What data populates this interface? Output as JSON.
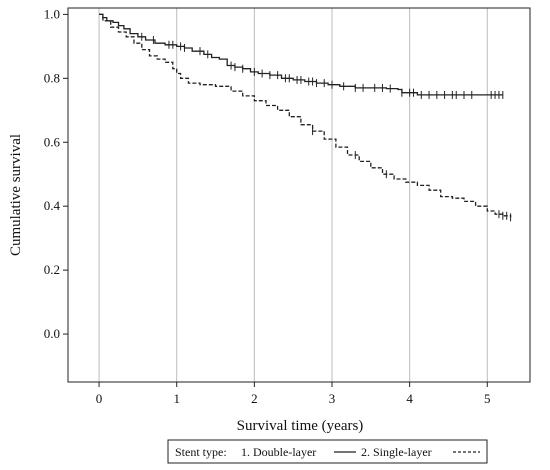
{
  "chart_data": {
    "type": "line",
    "title": "",
    "xlabel": "Survival time (years)",
    "ylabel": "Cumulative survival",
    "xlim": [
      -0.4,
      5.55
    ],
    "ylim": [
      -0.15,
      1.02
    ],
    "xticks": [
      0,
      1,
      2,
      3,
      4,
      5
    ],
    "yticks": [
      0.0,
      0.2,
      0.4,
      0.6,
      0.8,
      1.0
    ],
    "xtick_labels": [
      "0",
      "1",
      "2",
      "3",
      "4",
      "5"
    ],
    "ytick_labels": [
      "0.0",
      "0.2",
      "0.4",
      "0.6",
      "0.8",
      "1.0"
    ],
    "grid": "vertical",
    "legend": {
      "placement": "bottom",
      "prefix": "Stent type:",
      "entries": [
        "1. Double-layer",
        "2. Single-layer"
      ]
    },
    "series": [
      {
        "name": "1. Double-layer",
        "line": "solid",
        "color": "#222222",
        "x": [
          0,
          0.05,
          0.1,
          0.18,
          0.25,
          0.32,
          0.4,
          0.5,
          0.6,
          0.72,
          0.85,
          1.0,
          1.1,
          1.2,
          1.35,
          1.45,
          1.55,
          1.65,
          1.75,
          1.85,
          1.95,
          2.05,
          2.2,
          2.35,
          2.5,
          2.65,
          2.8,
          2.95,
          3.1,
          3.3,
          3.5,
          3.7,
          3.85,
          3.9,
          4.1,
          4.5,
          5.0,
          5.2
        ],
        "y": [
          1.0,
          0.99,
          0.98,
          0.975,
          0.965,
          0.955,
          0.94,
          0.93,
          0.92,
          0.91,
          0.905,
          0.9,
          0.895,
          0.885,
          0.875,
          0.865,
          0.86,
          0.84,
          0.835,
          0.83,
          0.82,
          0.815,
          0.81,
          0.8,
          0.795,
          0.79,
          0.785,
          0.78,
          0.775,
          0.77,
          0.77,
          0.768,
          0.765,
          0.755,
          0.748,
          0.748,
          0.748,
          0.748
        ],
        "censored_x": [
          0.55,
          0.7,
          0.9,
          0.95,
          1.05,
          1.1,
          1.3,
          1.4,
          1.7,
          1.75,
          1.85,
          2.0,
          2.1,
          2.2,
          2.3,
          2.4,
          2.45,
          2.55,
          2.6,
          2.7,
          2.75,
          2.8,
          2.9,
          3.0,
          3.15,
          3.3,
          3.4,
          3.55,
          3.65,
          3.75,
          3.9,
          4.0,
          4.05,
          4.15,
          4.25,
          4.35,
          4.45,
          4.55,
          4.6,
          4.7,
          4.8,
          5.05,
          5.1,
          5.15,
          5.2
        ]
      },
      {
        "name": "2. Single-layer",
        "line": "dashed",
        "color": "#222222",
        "x": [
          0,
          0.05,
          0.15,
          0.25,
          0.35,
          0.45,
          0.55,
          0.65,
          0.75,
          0.85,
          0.95,
          1.0,
          1.05,
          1.15,
          1.3,
          1.5,
          1.7,
          1.85,
          2.0,
          2.15,
          2.3,
          2.45,
          2.6,
          2.75,
          2.9,
          3.05,
          3.2,
          3.35,
          3.5,
          3.65,
          3.8,
          3.95,
          4.1,
          4.25,
          4.4,
          4.55,
          4.7,
          4.85,
          5.0,
          5.1,
          5.2,
          5.3
        ],
        "y": [
          1.0,
          0.98,
          0.96,
          0.945,
          0.93,
          0.91,
          0.89,
          0.87,
          0.86,
          0.85,
          0.83,
          0.815,
          0.8,
          0.785,
          0.78,
          0.775,
          0.76,
          0.745,
          0.73,
          0.715,
          0.7,
          0.68,
          0.655,
          0.635,
          0.61,
          0.585,
          0.56,
          0.54,
          0.52,
          0.5,
          0.485,
          0.475,
          0.465,
          0.45,
          0.43,
          0.425,
          0.415,
          0.4,
          0.385,
          0.375,
          0.37,
          0.365
        ],
        "censored_x": [
          2.75,
          3.3,
          3.7,
          5.15,
          5.2,
          5.25,
          5.3
        ]
      }
    ]
  }
}
